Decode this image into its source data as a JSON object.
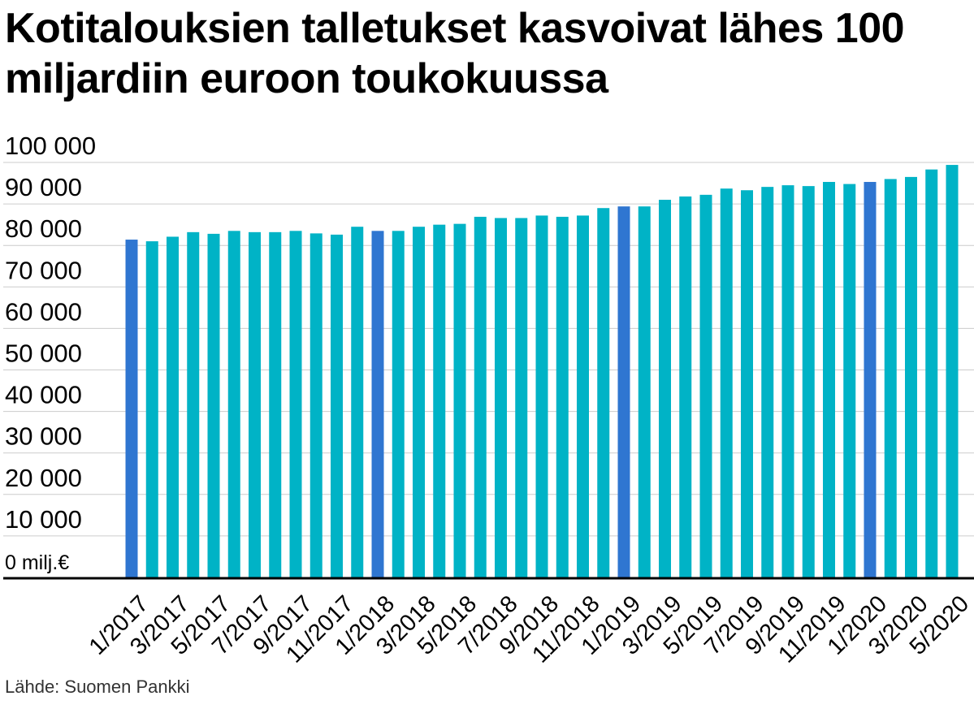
{
  "title": "Kotitalouksien talletukset kasvoivat lähes 100 miljardiin euroon toukokuussa",
  "source": "Lähde: Suomen Pankki",
  "colors": {
    "bar": "#00b3c6",
    "highlight": "#2f76d1",
    "grid": "#cccccc",
    "axis": "#000000"
  },
  "chart_data": {
    "type": "bar",
    "categories": [
      "1/2017",
      "2/2017",
      "3/2017",
      "4/2017",
      "5/2017",
      "6/2017",
      "7/2017",
      "8/2017",
      "9/2017",
      "10/2017",
      "11/2017",
      "12/2017",
      "1/2018",
      "2/2018",
      "3/2018",
      "4/2018",
      "5/2018",
      "6/2018",
      "7/2018",
      "8/2018",
      "9/2018",
      "10/2018",
      "11/2018",
      "12/2018",
      "1/2019",
      "2/2019",
      "3/2019",
      "4/2019",
      "5/2019",
      "6/2019",
      "7/2019",
      "8/2019",
      "9/2019",
      "10/2019",
      "11/2019",
      "12/2019",
      "1/2020",
      "2/2020",
      "3/2020",
      "4/2020",
      "5/2020"
    ],
    "x_tick_labels": [
      "1/2017",
      "3/2017",
      "5/2017",
      "7/2017",
      "9/2017",
      "11/2017",
      "1/2018",
      "3/2018",
      "5/2018",
      "7/2018",
      "9/2018",
      "11/2018",
      "1/2019",
      "3/2019",
      "5/2019",
      "7/2019",
      "9/2019",
      "11/2019",
      "1/2020",
      "3/2020",
      "5/2020"
    ],
    "values": [
      81400,
      81000,
      82100,
      83200,
      82800,
      83500,
      83200,
      83200,
      83500,
      82900,
      82600,
      84500,
      83500,
      83500,
      84500,
      85000,
      85200,
      86900,
      86600,
      86600,
      87200,
      86900,
      87200,
      89000,
      89400,
      89400,
      91000,
      91800,
      92200,
      93700,
      93300,
      94100,
      94500,
      94300,
      95300,
      94800,
      95300,
      96000,
      96500,
      98300,
      99400
    ],
    "highlight": [
      "1/2017",
      "1/2018",
      "1/2019",
      "1/2020"
    ],
    "y_tick_labels": [
      "0 milj.€",
      "10 000",
      "20 000",
      "30 000",
      "40 000",
      "50 000",
      "60 000",
      "70 000",
      "80 000",
      "90 000",
      "100 000"
    ],
    "ylim": [
      0,
      100000
    ],
    "y_step": 10000,
    "grid": true,
    "legend": "none"
  }
}
